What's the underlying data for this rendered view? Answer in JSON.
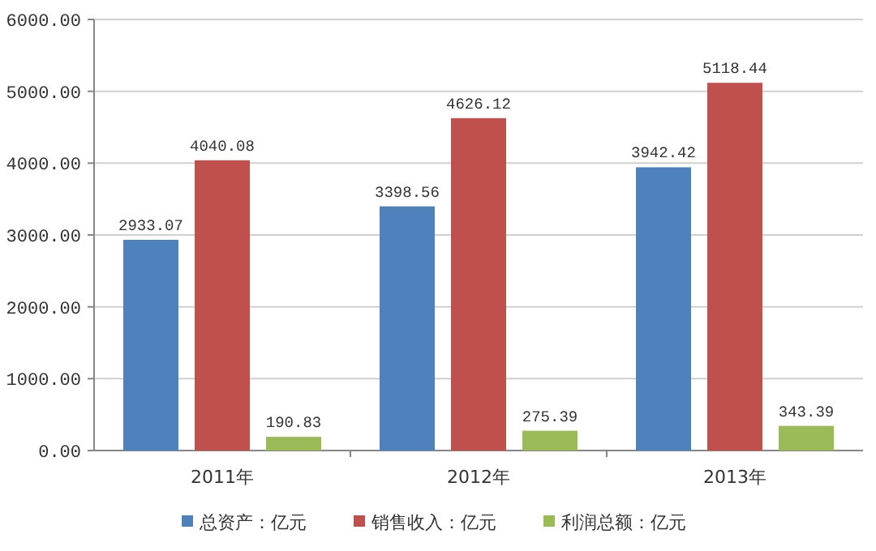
{
  "chart_data": {
    "type": "bar",
    "categories": [
      "2011年",
      "2012年",
      "2013年"
    ],
    "series": [
      {
        "name": "总资产：亿元",
        "color": "#4f81bd",
        "values": [
          2933.07,
          3398.56,
          3942.42
        ]
      },
      {
        "name": "销售收入：亿元",
        "color": "#c0504d",
        "values": [
          4040.08,
          4626.12,
          5118.44
        ]
      },
      {
        "name": "利润总额：亿元",
        "color": "#9bbb59",
        "values": [
          190.83,
          275.39,
          343.39
        ]
      }
    ],
    "ylim": [
      0,
      6000
    ],
    "yticks": [
      {
        "value": 0,
        "label": "0.00"
      },
      {
        "value": 1000,
        "label": "1000.00"
      },
      {
        "value": 2000,
        "label": "2000.00"
      },
      {
        "value": 3000,
        "label": "3000.00"
      },
      {
        "value": 4000,
        "label": "4000.00"
      },
      {
        "value": 5000,
        "label": "5000.00"
      },
      {
        "value": 6000,
        "label": "6000.00"
      }
    ],
    "grid": "y",
    "legend": "bottom",
    "data_labels": true
  }
}
